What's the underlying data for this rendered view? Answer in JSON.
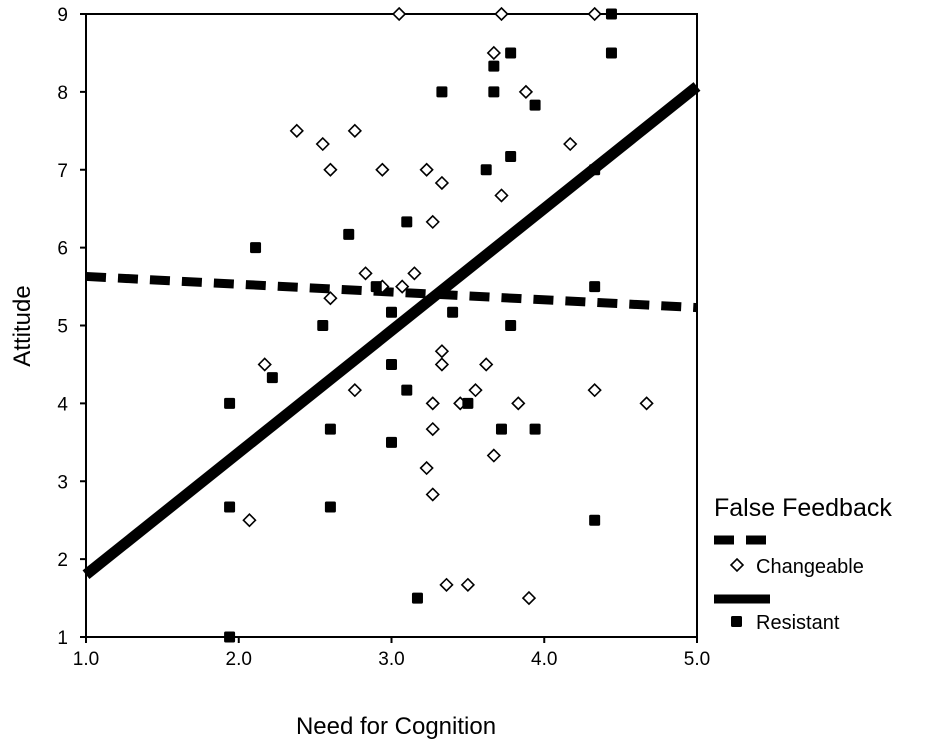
{
  "chart_data": {
    "type": "scatter",
    "title": "",
    "xlabel": "Need for Cognition",
    "ylabel": "Attitude",
    "xlim": [
      1.0,
      5.0
    ],
    "ylim": [
      1,
      9
    ],
    "x_ticks": [
      1.0,
      2.0,
      3.0,
      4.0,
      5.0
    ],
    "x_tick_labels": [
      "1.0",
      "2.0",
      "3.0",
      "4.0",
      "5.0"
    ],
    "y_ticks": [
      1,
      2,
      3,
      4,
      5,
      6,
      7,
      8,
      9
    ],
    "y_tick_labels": [
      "1",
      "2",
      "3",
      "4",
      "5",
      "6",
      "7",
      "8",
      "9"
    ],
    "grid": false,
    "legend_position": "right",
    "legend_title": "False Feedback",
    "series": [
      {
        "name": "Changeable",
        "marker": "open-diamond",
        "line_style": "dashed",
        "color": "#000000",
        "fit_line": {
          "x": [
            1.0,
            5.0
          ],
          "y": [
            5.63,
            5.23
          ]
        },
        "points": [
          [
            2.17,
            4.5
          ],
          [
            2.07,
            2.5
          ],
          [
            2.38,
            7.5
          ],
          [
            2.55,
            7.33
          ],
          [
            2.6,
            7.0
          ],
          [
            2.6,
            5.35
          ],
          [
            2.76,
            7.5
          ],
          [
            2.76,
            4.17
          ],
          [
            2.83,
            5.67
          ],
          [
            2.94,
            7.0
          ],
          [
            2.94,
            5.5
          ],
          [
            3.05,
            9.0
          ],
          [
            3.07,
            5.5
          ],
          [
            3.15,
            5.67
          ],
          [
            3.23,
            7.0
          ],
          [
            3.23,
            3.17
          ],
          [
            3.27,
            6.33
          ],
          [
            3.27,
            4.0
          ],
          [
            3.27,
            3.67
          ],
          [
            3.27,
            2.83
          ],
          [
            3.33,
            6.83
          ],
          [
            3.33,
            4.67
          ],
          [
            3.33,
            4.5
          ],
          [
            3.36,
            1.67
          ],
          [
            3.45,
            4.0
          ],
          [
            3.5,
            1.67
          ],
          [
            3.55,
            4.17
          ],
          [
            3.62,
            4.5
          ],
          [
            3.67,
            8.5
          ],
          [
            3.67,
            3.33
          ],
          [
            3.72,
            9.0
          ],
          [
            3.72,
            6.67
          ],
          [
            3.83,
            4.0
          ],
          [
            3.88,
            8.0
          ],
          [
            3.9,
            1.5
          ],
          [
            4.17,
            7.33
          ],
          [
            4.33,
            9.0
          ],
          [
            4.33,
            4.17
          ],
          [
            4.67,
            4.0
          ]
        ]
      },
      {
        "name": "Resistant",
        "marker": "filled-square",
        "line_style": "solid",
        "color": "#000000",
        "fit_line": {
          "x": [
            1.0,
            5.0
          ],
          "y": [
            1.8,
            8.07
          ]
        },
        "points": [
          [
            1.94,
            4.0
          ],
          [
            1.94,
            2.67
          ],
          [
            1.94,
            1.0
          ],
          [
            2.11,
            6.0
          ],
          [
            2.22,
            4.33
          ],
          [
            2.55,
            5.0
          ],
          [
            2.6,
            3.67
          ],
          [
            2.6,
            2.67
          ],
          [
            2.72,
            6.17
          ],
          [
            2.9,
            5.5
          ],
          [
            3.0,
            5.17
          ],
          [
            3.0,
            4.5
          ],
          [
            3.0,
            3.5
          ],
          [
            3.1,
            6.33
          ],
          [
            3.1,
            4.17
          ],
          [
            3.17,
            1.5
          ],
          [
            3.33,
            8.0
          ],
          [
            3.4,
            5.17
          ],
          [
            3.5,
            4.0
          ],
          [
            3.62,
            7.0
          ],
          [
            3.67,
            8.33
          ],
          [
            3.67,
            8.0
          ],
          [
            3.72,
            3.67
          ],
          [
            3.78,
            8.5
          ],
          [
            3.78,
            7.17
          ],
          [
            3.78,
            5.0
          ],
          [
            3.94,
            7.83
          ],
          [
            3.94,
            3.67
          ],
          [
            4.33,
            7.0
          ],
          [
            4.33,
            5.5
          ],
          [
            4.33,
            2.5
          ],
          [
            4.44,
            9.0
          ],
          [
            4.44,
            8.5
          ]
        ]
      }
    ]
  }
}
